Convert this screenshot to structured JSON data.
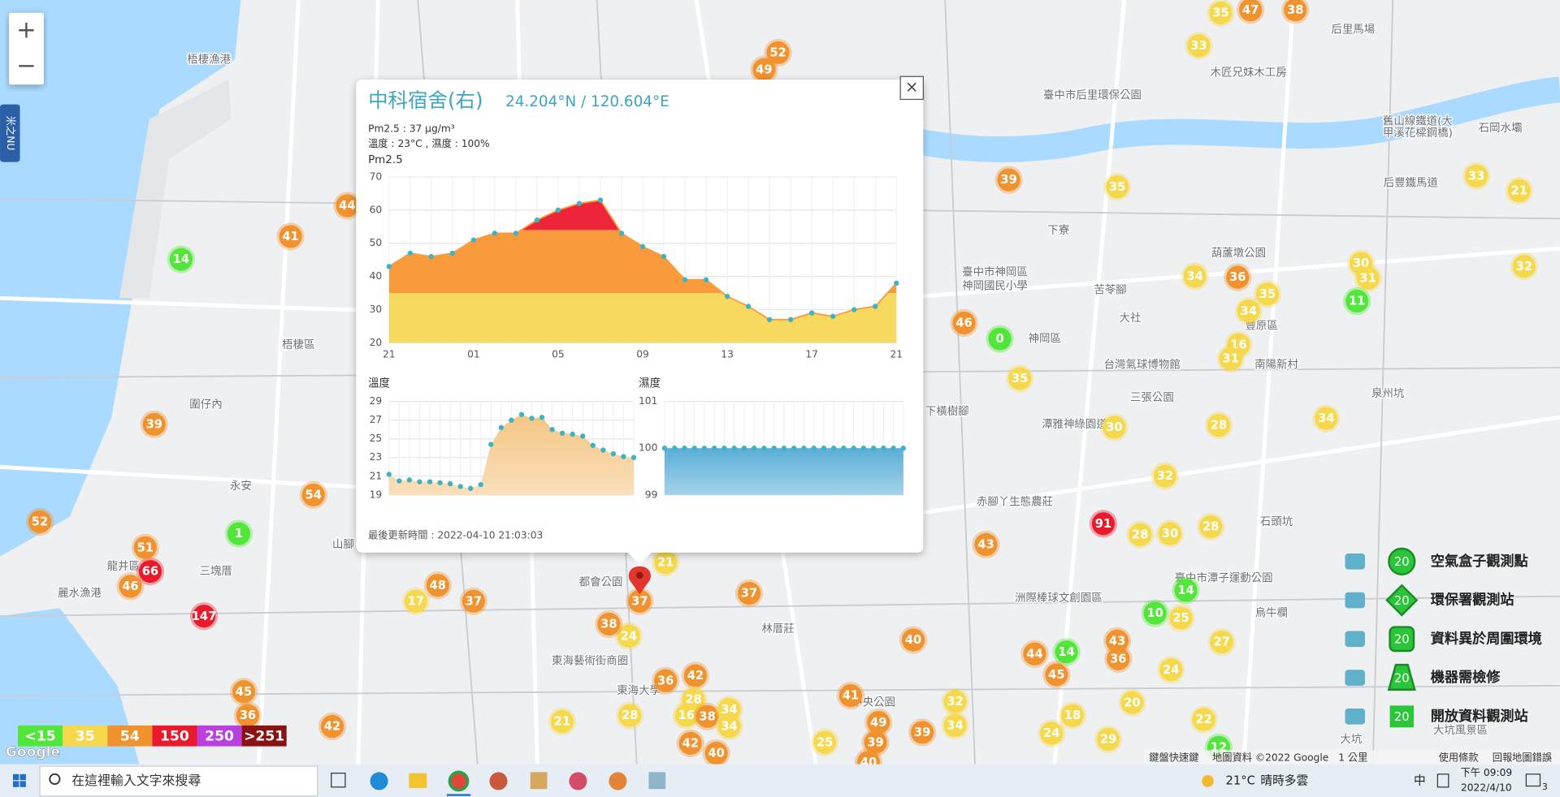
{
  "map": {
    "markers": [
      52,
      49,
      35,
      47,
      38,
      33,
      39,
      35,
      33,
      21,
      32,
      30,
      31,
      36,
      34,
      35,
      34,
      16,
      31,
      46,
      0,
      35,
      30,
      28,
      34,
      32,
      91,
      28,
      30,
      28,
      43,
      14,
      10,
      25,
      27,
      43,
      36,
      44,
      14,
      45,
      24,
      20,
      18,
      24,
      29,
      22,
      12,
      40,
      41,
      49,
      39,
      39,
      32,
      34,
      25,
      40,
      40,
      42,
      42,
      36,
      28,
      16,
      38,
      34,
      34,
      28,
      21,
      24,
      38,
      37,
      37,
      21,
      37,
      48,
      17,
      42,
      45,
      36,
      147,
      66,
      51,
      46,
      1,
      54,
      52,
      39,
      14,
      41,
      44,
      11
    ],
    "places": [
      "梧棲漁港",
      "梧棲區",
      "臺中市后里環保公園",
      "后里馬場",
      "木匠兄妹木工房",
      "舊山線鐵道(大",
      "甲溪花樑鋼橋)",
      "石岡水壩",
      "后豐鐵馬道",
      "葫蘆墩公園",
      "豐原區",
      "南陽新村",
      "泉州坑",
      "神岡區",
      "大社",
      "下寮",
      "苦苓腳",
      "台灣氣球博物館",
      "三張公園",
      "潭雅神綠園道",
      "下橫樹腳",
      "臺中市神岡區",
      "神岡國民小學",
      "赤腳丫生態農莊",
      "洲際棒球文創園區",
      "臺中市潭子運動公園",
      "烏牛欄",
      "石頭坑",
      "林厝莊",
      "東海藝術街商圈",
      "東海大學",
      "中央公園",
      "大坑",
      "大坑風景區",
      "龍井區",
      "麗水漁港",
      "三塊厝",
      "永安",
      "圍仔內",
      "都會公園",
      "山腳"
    ]
  },
  "controls": {
    "zoom_in": "+",
    "zoom_out": "−",
    "side_tab": "米之NU"
  },
  "popup": {
    "title": "中科宿舍(右)",
    "coords": "24.204°N / 120.604°E",
    "lines": [
      "Pm2.5 : 37 μg/m³",
      "溫度 : 23°C , 濕度 : 100%"
    ],
    "updated": "最後更新時間 : 2022-04-10 21:03:03",
    "close": "×"
  },
  "chart_data": [
    {
      "type": "area",
      "title": "Pm2.5",
      "categories": [
        "21",
        null,
        null,
        null,
        "01",
        null,
        null,
        null,
        "05",
        null,
        null,
        null,
        "09",
        null,
        null,
        null,
        "13",
        null,
        null,
        null,
        "17",
        null,
        null,
        null,
        "21"
      ],
      "values": [
        43,
        47,
        46,
        47,
        51,
        53,
        53,
        57,
        60,
        62,
        63,
        53,
        49,
        46,
        39,
        39,
        34,
        31,
        27,
        27,
        29,
        28,
        30,
        31,
        38
      ],
      "ylim": [
        20,
        70
      ],
      "yticks": [
        20,
        30,
        40,
        50,
        60,
        70
      ],
      "grid": true,
      "bands": [
        {
          "from": 20,
          "to": 35,
          "color": "#f7d960"
        },
        {
          "from": 35,
          "to": 54,
          "color": "#f99b3c"
        },
        {
          "from": 54,
          "to": 70,
          "color": "#ee2538"
        }
      ],
      "point_color": "#3fb3c2"
    },
    {
      "type": "area",
      "title": "溫度",
      "values": [
        21.2,
        20.5,
        20.6,
        20.4,
        20.4,
        20.3,
        20.2,
        19.9,
        19.7,
        20.1,
        24.4,
        26.2,
        27,
        27.6,
        27.2,
        27.3,
        26,
        25.6,
        25.5,
        25.3,
        24.3,
        23.8,
        23.4,
        23.1,
        23
      ],
      "ylim": [
        19,
        29
      ],
      "yticks": [
        19,
        21,
        23,
        25,
        27,
        29
      ],
      "grid": true,
      "color": "#f5c684",
      "point_color": "#3fb3c2"
    },
    {
      "type": "area",
      "title": "濕度",
      "values": [
        100,
        100,
        100,
        100,
        100,
        100,
        100,
        100,
        100,
        100,
        100,
        100,
        100,
        100,
        100,
        100,
        100,
        100,
        100,
        100,
        100,
        100,
        100,
        100,
        100
      ],
      "ylim": [
        99,
        101
      ],
      "yticks": [
        99,
        100,
        101
      ],
      "grid": true,
      "color": "#5aaed8",
      "point_color": "#3fb3c2"
    }
  ],
  "aqi_legend": [
    {
      "value": 15,
      "label": "<15",
      "color": "#52e63a"
    },
    {
      "value": 35,
      "label": "35",
      "color": "#f6d84c"
    },
    {
      "value": 54,
      "label": "54",
      "color": "#f0922e"
    },
    {
      "value": 150,
      "label": "150",
      "color": "#e81a2c"
    },
    {
      "value": 250,
      "label": "250",
      "color": "#b941e0"
    },
    {
      "value": 251,
      "label": ">251",
      "color": "#8b1212"
    }
  ],
  "station_legend": {
    "value": 20,
    "items": [
      "空氣盒子觀測點",
      "環保署觀測站",
      "資料異於周圍環境",
      "機器需檢修",
      "開放資料觀測站"
    ]
  },
  "attribution": {
    "logo": "Google",
    "links": [
      "鍵盤快速鍵",
      "地圖資料 ©2022 Google",
      "1 公里",
      "使用條款",
      "回報地圖錯誤"
    ]
  },
  "taskbar": {
    "search": "在這裡輸入文字來搜尋",
    "temp": "21°C",
    "weather": "晴時多雲",
    "ime": "中",
    "time": "下午 09:09",
    "date": "2022/4/10",
    "notifications": "3"
  }
}
